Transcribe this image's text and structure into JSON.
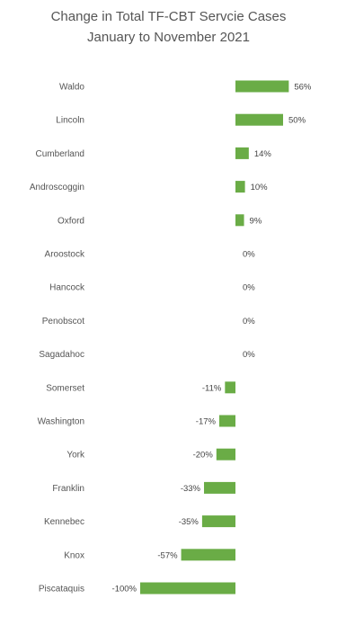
{
  "chart_data": {
    "type": "bar",
    "orientation": "horizontal",
    "title": "Change in Total TF-CBT Servcie Cases",
    "subtitle": "January to November 2021",
    "categories": [
      "Waldo",
      "Lincoln",
      "Cumberland",
      "Androscoggin",
      "Oxford",
      "Aroostock",
      "Hancock",
      "Penobscot",
      "Sagadahoc",
      "Somerset",
      "Washington",
      "York",
      "Franklin",
      "Kennebec",
      "Knox",
      "Piscataquis"
    ],
    "values": [
      56,
      50,
      14,
      10,
      9,
      0,
      0,
      0,
      0,
      -11,
      -17,
      -20,
      -33,
      -35,
      -57,
      -100
    ],
    "value_labels": [
      "56%",
      "50%",
      "14%",
      "10%",
      "9%",
      "0%",
      "0%",
      "0%",
      "0%",
      "-11%",
      "-17%",
      "-20%",
      "-33%",
      "-35%",
      "-57%",
      "-100%"
    ],
    "unit": "%",
    "bar_color": "#6aac46",
    "xlim": [
      -100,
      56
    ],
    "grid": false,
    "legend": "none"
  }
}
